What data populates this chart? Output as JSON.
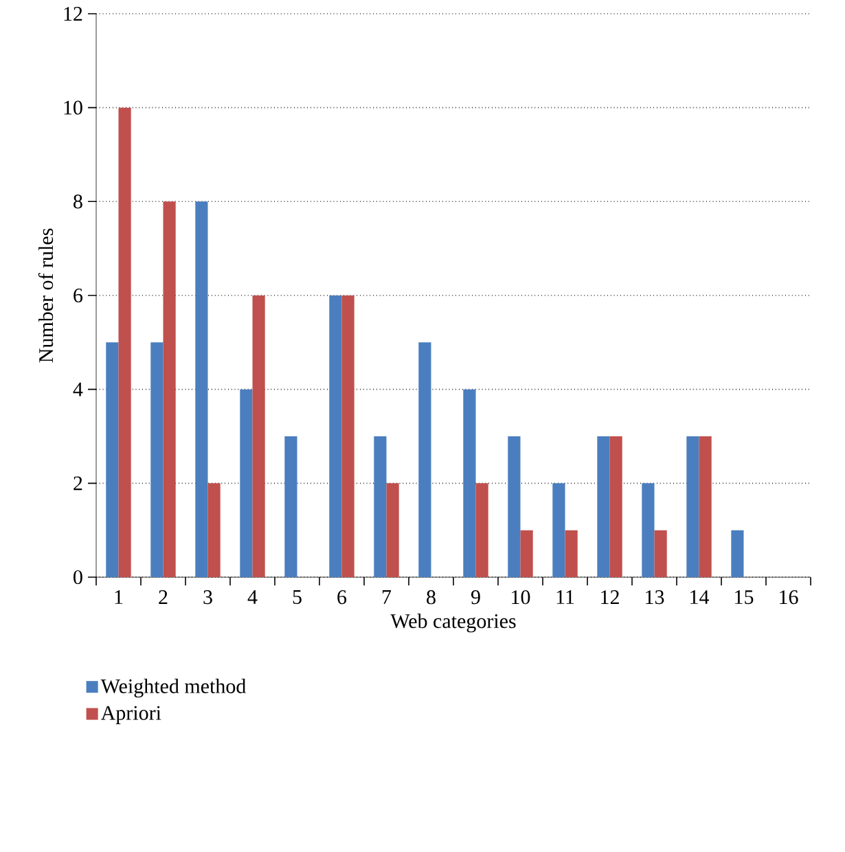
{
  "chart_data": {
    "type": "bar",
    "xlabel": "Web categories",
    "ylabel": "Number of rules",
    "categories": [
      "1",
      "2",
      "3",
      "4",
      "5",
      "6",
      "7",
      "8",
      "9",
      "10",
      "11",
      "12",
      "13",
      "14",
      "15",
      "16"
    ],
    "series": [
      {
        "name": "Weighted method",
        "color": "#4a7ebf",
        "values": [
          5,
          5,
          8,
          4,
          3,
          6,
          3,
          5,
          4,
          3,
          2,
          3,
          2,
          3,
          1,
          null
        ]
      },
      {
        "name": "Apriori",
        "color": "#c0504d",
        "values": [
          10,
          8,
          2,
          6,
          null,
          6,
          2,
          null,
          2,
          1,
          1,
          3,
          1,
          3,
          null,
          null
        ]
      }
    ],
    "ylim": [
      0,
      12
    ],
    "yticks": [
      0,
      2,
      4,
      6,
      8,
      10,
      12
    ],
    "grid": "y",
    "legend": "bottom left"
  }
}
